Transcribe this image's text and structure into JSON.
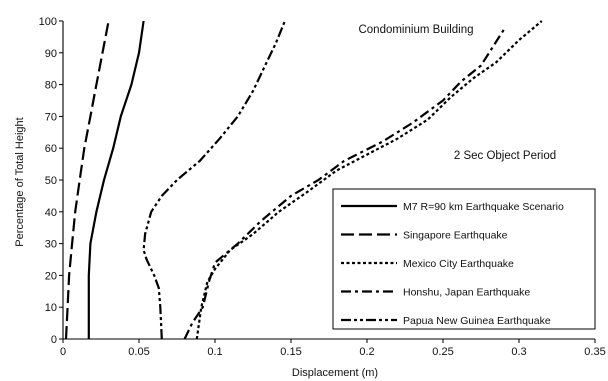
{
  "chart_data": {
    "type": "line",
    "title": "",
    "xlabel": "Displacement (m)",
    "ylabel": "Percentage of Total Height",
    "xlim": [
      0,
      0.35
    ],
    "ylim": [
      0,
      100
    ],
    "xticks": [
      0,
      0.05,
      0.1,
      0.15,
      0.2,
      0.25,
      0.3,
      0.35
    ],
    "xtick_labels": [
      "0",
      "0.05",
      "0.1",
      "0.15",
      "0.2",
      "0.25",
      "0.3",
      "0.35"
    ],
    "yticks": [
      0,
      10,
      20,
      30,
      40,
      50,
      60,
      70,
      80,
      90,
      100
    ],
    "ytick_labels": [
      "0",
      "10",
      "20",
      "30",
      "40",
      "50",
      "60",
      "70",
      "80",
      "90",
      "100"
    ],
    "grid": false,
    "legend_position": "bottom-right",
    "annotations": [
      "Condominium Building",
      "2 Sec Object Period"
    ],
    "series": [
      {
        "name": "M7 R=90 km Earthquake Scenario",
        "dash": "solid",
        "points": [
          [
            0.017,
            0
          ],
          [
            0.017,
            10
          ],
          [
            0.017,
            20
          ],
          [
            0.018,
            30
          ],
          [
            0.02,
            35
          ],
          [
            0.022,
            40
          ],
          [
            0.027,
            50
          ],
          [
            0.033,
            60
          ],
          [
            0.038,
            70
          ],
          [
            0.045,
            80
          ],
          [
            0.05,
            90
          ],
          [
            0.053,
            100
          ]
        ]
      },
      {
        "name": "Singapore Earthquake",
        "dash": "longdash",
        "points": [
          [
            0.002,
            0
          ],
          [
            0.003,
            10
          ],
          [
            0.004,
            20
          ],
          [
            0.006,
            30
          ],
          [
            0.008,
            40
          ],
          [
            0.011,
            50
          ],
          [
            0.014,
            60
          ],
          [
            0.018,
            70
          ],
          [
            0.022,
            80
          ],
          [
            0.026,
            90
          ],
          [
            0.03,
            100
          ]
        ]
      },
      {
        "name": "Mexico City Earthquake",
        "dash": "dotted",
        "points": [
          [
            0.088,
            0
          ],
          [
            0.091,
            10
          ],
          [
            0.095,
            18
          ],
          [
            0.1,
            22
          ],
          [
            0.11,
            28
          ],
          [
            0.125,
            33
          ],
          [
            0.142,
            40
          ],
          [
            0.16,
            46
          ],
          [
            0.18,
            53
          ],
          [
            0.2,
            58
          ],
          [
            0.22,
            63
          ],
          [
            0.24,
            69
          ],
          [
            0.255,
            76
          ],
          [
            0.27,
            82
          ],
          [
            0.285,
            87
          ],
          [
            0.3,
            94
          ],
          [
            0.315,
            100
          ]
        ]
      },
      {
        "name": "Honshu, Japan Earthquake",
        "dash": "dashdot",
        "points": [
          [
            0.08,
            0
          ],
          [
            0.085,
            5
          ],
          [
            0.092,
            10
          ],
          [
            0.096,
            18
          ],
          [
            0.1,
            24
          ],
          [
            0.115,
            30
          ],
          [
            0.13,
            37
          ],
          [
            0.15,
            45
          ],
          [
            0.168,
            50
          ],
          [
            0.185,
            56
          ],
          [
            0.21,
            62
          ],
          [
            0.23,
            68
          ],
          [
            0.25,
            75
          ],
          [
            0.262,
            81
          ],
          [
            0.275,
            86
          ],
          [
            0.287,
            95
          ],
          [
            0.291,
            98
          ]
        ]
      },
      {
        "name": "Papua New Guinea Earthquake",
        "dash": "dashdotdot",
        "points": [
          [
            0.065,
            0
          ],
          [
            0.064,
            10
          ],
          [
            0.063,
            16
          ],
          [
            0.06,
            20
          ],
          [
            0.055,
            25
          ],
          [
            0.053,
            28
          ],
          [
            0.054,
            33
          ],
          [
            0.058,
            40
          ],
          [
            0.065,
            45
          ],
          [
            0.075,
            50
          ],
          [
            0.09,
            56
          ],
          [
            0.103,
            63
          ],
          [
            0.115,
            70
          ],
          [
            0.125,
            78
          ],
          [
            0.132,
            85
          ],
          [
            0.14,
            93
          ],
          [
            0.146,
            100
          ]
        ]
      }
    ]
  }
}
